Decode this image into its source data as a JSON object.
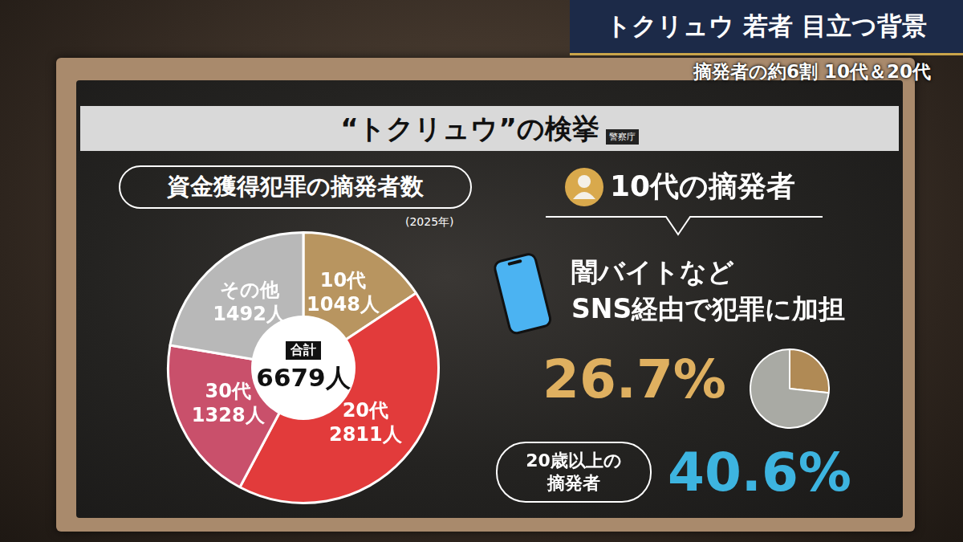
{
  "header": {
    "title": "トクリュウ 若者 目立つ背景",
    "subtitle": "摘発者の約6割 10代＆20代"
  },
  "board": {
    "title": "“トクリュウ”の検挙",
    "source": "警察庁"
  },
  "chart_data": [
    {
      "type": "pie",
      "title": "資金獲得犯罪の摘発者数",
      "subtitle": "(2025年)",
      "categories": [
        "10代",
        "20代",
        "30代",
        "その他"
      ],
      "values": [
        1048,
        2811,
        1328,
        1492
      ],
      "value_labels": [
        "1048人",
        "2811人",
        "1328人",
        "1492人"
      ],
      "colors": [
        "#b89560",
        "#e23b3b",
        "#c9506b",
        "#b8b8b8"
      ],
      "data_labels": true,
      "legend": false,
      "annotations": [
        "合計",
        "6679人"
      ]
    },
    {
      "type": "pie",
      "values": [
        26.7,
        73.3
      ],
      "colors": [
        "#b08a55",
        "#a9aaa4"
      ],
      "data_labels": false,
      "legend": false,
      "annotations": [
        "26.7%"
      ]
    }
  ],
  "panel": {
    "title": "10代の摘発者",
    "text": [
      "闇バイトなど",
      "SNS経由で犯罪に加担"
    ],
    "stat": {
      "label": [
        "20歳以上の",
        "摘発者"
      ],
      "value": "40.6%"
    }
  }
}
